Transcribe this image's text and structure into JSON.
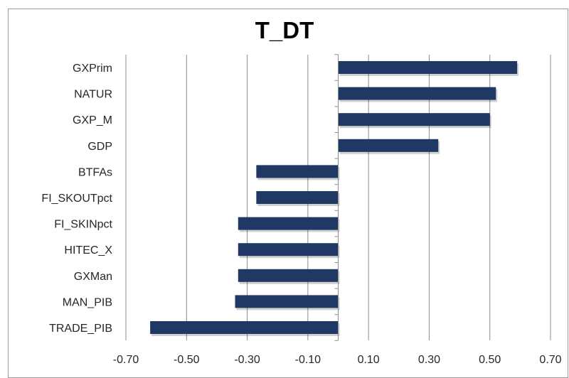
{
  "chart_data": {
    "type": "bar",
    "orientation": "horizontal",
    "title": "T_DT",
    "xlabel": "",
    "ylabel": "",
    "categories": [
      "GXPrim",
      "NATUR",
      "GXP_M",
      "GDP",
      "BTFAs",
      "FI_SKOUTpct",
      "FI_SKINpct",
      "HITEC_X",
      "GXMan",
      "MAN_PIB",
      "TRADE_PIB"
    ],
    "values": [
      0.59,
      0.52,
      0.5,
      0.33,
      -0.27,
      -0.27,
      -0.33,
      -0.33,
      -0.33,
      -0.34,
      -0.62
    ],
    "xlim": [
      -0.7,
      0.7
    ],
    "xticks": [
      "-0.70",
      "-0.50",
      "-0.30",
      "-0.10",
      "0.10",
      "0.30",
      "0.50",
      "0.70"
    ],
    "grid": "vertical",
    "bar_color": "#1f3864"
  }
}
